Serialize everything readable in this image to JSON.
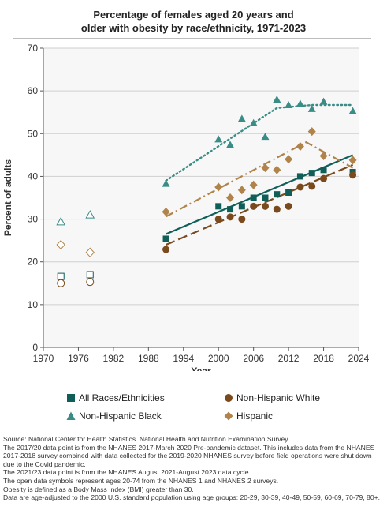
{
  "chart_data": {
    "type": "scatter",
    "title_lines": [
      "Percentage of females aged 20 years and",
      "older with obesity by race/ethnicity, 1971-2023"
    ],
    "xlabel": "Year",
    "ylabel": "Percent of adults",
    "xlim": [
      1970,
      2024
    ],
    "ylim": [
      0,
      70
    ],
    "xticks": [
      1970,
      1976,
      1982,
      1988,
      1994,
      2000,
      2006,
      2012,
      2018,
      2024
    ],
    "yticks": [
      0,
      10,
      20,
      30,
      40,
      50,
      60,
      70
    ],
    "grid": "horizontal",
    "legend_position": "bottom",
    "series": [
      {
        "name": "All Races/Ethnicities",
        "color": "#0f5e57",
        "marker": "square",
        "line_style": "solid",
        "open_points": [
          {
            "x": 1973,
            "y": 16.6
          },
          {
            "x": 1978,
            "y": 17.0
          }
        ],
        "points": [
          {
            "x": 1991,
            "y": 25.4
          },
          {
            "x": 2000,
            "y": 33.0
          },
          {
            "x": 2002,
            "y": 32.3
          },
          {
            "x": 2004,
            "y": 33.0
          },
          {
            "x": 2006,
            "y": 35.0
          },
          {
            "x": 2008,
            "y": 35.0
          },
          {
            "x": 2010,
            "y": 35.8
          },
          {
            "x": 2012,
            "y": 36.2
          },
          {
            "x": 2014,
            "y": 40.0
          },
          {
            "x": 2016,
            "y": 40.8
          },
          {
            "x": 2018,
            "y": 41.5
          },
          {
            "x": 2023,
            "y": 41.0
          }
        ],
        "trend": [
          {
            "x": 1991,
            "y": 26.5
          },
          {
            "x": 2023,
            "y": 45.0
          }
        ]
      },
      {
        "name": "Non-Hispanic White",
        "color": "#7a4a1d",
        "marker": "circle",
        "line_style": "dashed",
        "open_points": [
          {
            "x": 1973,
            "y": 15.0
          },
          {
            "x": 1978,
            "y": 15.3
          }
        ],
        "points": [
          {
            "x": 1991,
            "y": 22.9
          },
          {
            "x": 2000,
            "y": 30.0
          },
          {
            "x": 2002,
            "y": 30.5
          },
          {
            "x": 2004,
            "y": 30.0
          },
          {
            "x": 2006,
            "y": 33.0
          },
          {
            "x": 2008,
            "y": 33.0
          },
          {
            "x": 2010,
            "y": 32.3
          },
          {
            "x": 2012,
            "y": 33.0
          },
          {
            "x": 2014,
            "y": 37.5
          },
          {
            "x": 2016,
            "y": 37.7
          },
          {
            "x": 2018,
            "y": 39.5
          },
          {
            "x": 2023,
            "y": 40.3
          }
        ],
        "trend": [
          {
            "x": 1991,
            "y": 24.0
          },
          {
            "x": 2023,
            "y": 42.7
          }
        ]
      },
      {
        "name": "Non-Hispanic Black",
        "color": "#3a8c87",
        "marker": "triangle",
        "line_style": "dotted",
        "open_points": [
          {
            "x": 1973,
            "y": 29.4
          },
          {
            "x": 1978,
            "y": 31.0
          }
        ],
        "points": [
          {
            "x": 1991,
            "y": 38.3
          },
          {
            "x": 2000,
            "y": 48.7
          },
          {
            "x": 2002,
            "y": 47.4
          },
          {
            "x": 2004,
            "y": 53.5
          },
          {
            "x": 2006,
            "y": 52.5
          },
          {
            "x": 2008,
            "y": 49.3
          },
          {
            "x": 2010,
            "y": 58.0
          },
          {
            "x": 2012,
            "y": 56.7
          },
          {
            "x": 2014,
            "y": 57.0
          },
          {
            "x": 2016,
            "y": 55.8
          },
          {
            "x": 2018,
            "y": 57.5
          },
          {
            "x": 2023,
            "y": 55.3
          }
        ],
        "trend": [
          {
            "x": 1991,
            "y": 39.0
          },
          {
            "x": 2010,
            "y": 56.0
          },
          {
            "x": 2016,
            "y": 56.7
          },
          {
            "x": 2023,
            "y": 56.7
          }
        ]
      },
      {
        "name": "Hispanic",
        "color": "#b0834a",
        "marker": "diamond",
        "line_style": "dash-dot",
        "open_points": [
          {
            "x": 1973,
            "y": 24.0
          },
          {
            "x": 1978,
            "y": 22.2
          }
        ],
        "points": [
          {
            "x": 1991,
            "y": 31.7
          },
          {
            "x": 2000,
            "y": 37.5
          },
          {
            "x": 2002,
            "y": 35.0
          },
          {
            "x": 2004,
            "y": 36.8
          },
          {
            "x": 2006,
            "y": 38.0
          },
          {
            "x": 2008,
            "y": 42.0
          },
          {
            "x": 2010,
            "y": 41.5
          },
          {
            "x": 2012,
            "y": 44.0
          },
          {
            "x": 2014,
            "y": 47.0
          },
          {
            "x": 2016,
            "y": 50.5
          },
          {
            "x": 2018,
            "y": 44.8
          },
          {
            "x": 2023,
            "y": 43.8
          }
        ],
        "trend": [
          {
            "x": 1991,
            "y": 30.6
          },
          {
            "x": 2015,
            "y": 48.0
          },
          {
            "x": 2023,
            "y": 42.0
          }
        ]
      }
    ]
  },
  "legend": [
    {
      "label": "All Races/Ethnicities",
      "marker": "square",
      "color": "#0f5e57"
    },
    {
      "label": "Non-Hispanic White",
      "marker": "circle",
      "color": "#7a4a1d"
    },
    {
      "label": "Non-Hispanic Black",
      "marker": "triangle",
      "color": "#3a8c87"
    },
    {
      "label": "Hispanic",
      "marker": "diamond",
      "color": "#b0834a"
    }
  ],
  "notes": [
    "Source: National Center for Health Statistics. National Health and Nutrition Examination Survey.",
    "The 2017/20 data point is from the NHANES 2017-March 2020 Pre-pandemic dataset. This includes data from the NHANES 2017-2018 survey combined with data collected for the 2019-2020 NHANES survey before field operations were shut down due to the Covid pandemic.",
    "The 2021/23 data point is from the NHANES August 2021-August 2023 data cycle.",
    "The open data symbols represent ages 20-74 from the NHANES 1 and NHANES 2 surveys.",
    "Obesity is defined as a Body Mass Index (BMI) greater than 30.",
    "Data are age-adjusted to the 2000 U.S. standard population using age groups: 20-29, 30-39, 40-49, 50-59, 60-69, 70-79, 80+."
  ]
}
